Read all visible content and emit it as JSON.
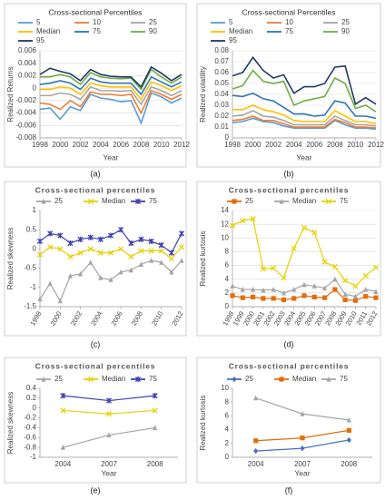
{
  "chart_data": [
    {
      "type": "line",
      "title": "Cross-sectional Percentiles",
      "panel_label": "(a)",
      "xlabel": "Year",
      "ylabel": "Realized Returns",
      "x": [
        1998,
        1999,
        2000,
        2001,
        2002,
        2003,
        2004,
        2005,
        2006,
        2007,
        2008,
        2009,
        2010,
        2011,
        2012
      ],
      "xlim": [
        1998,
        2012
      ],
      "xticks": [
        1998,
        2000,
        2002,
        2004,
        2006,
        2008,
        2010,
        2012
      ],
      "ylim": [
        -0.008,
        0.006
      ],
      "yticks": [
        -0.008,
        -0.006,
        -0.004,
        -0.002,
        0,
        0.002,
        0.004,
        0.006
      ],
      "grid": true,
      "legend": "top",
      "series": [
        {
          "name": "5",
          "color": "#5b9bd5",
          "marker": "none",
          "values": [
            -0.0034,
            -0.0032,
            -0.005,
            -0.003,
            -0.0036,
            -0.001,
            -0.0016,
            -0.0018,
            -0.0022,
            -0.002,
            -0.0056,
            -0.0008,
            -0.0014,
            -0.0024,
            -0.0016
          ]
        },
        {
          "name": "10",
          "color": "#ed7d31",
          "marker": "none",
          "values": [
            -0.0024,
            -0.0026,
            -0.0034,
            -0.002,
            -0.003,
            -0.0006,
            -0.001,
            -0.001,
            -0.0012,
            -0.001,
            -0.004,
            -0.0004,
            -0.001,
            -0.0018,
            -0.001
          ]
        },
        {
          "name": "25",
          "color": "#a5a5a5",
          "marker": "none",
          "values": [
            -0.0012,
            -0.0012,
            -0.0008,
            -0.001,
            -0.0018,
            0.0002,
            -0.0004,
            -0.0004,
            -0.0005,
            -0.0004,
            -0.0026,
            0.0002,
            -0.0004,
            -0.0012,
            -0.0004
          ]
        },
        {
          "name": "Median",
          "color": "#ffc000",
          "marker": "none",
          "values": [
            -0.0002,
            -0.0002,
            0.0002,
            0,
            -0.001,
            0.0008,
            0.0004,
            0.0002,
            0.0002,
            0.0002,
            -0.0018,
            0.001,
            0.0004,
            -0.0004,
            0.0004
          ]
        },
        {
          "name": "75",
          "color": "#2e75b6",
          "marker": "none",
          "values": [
            0.0006,
            0.0008,
            0.0012,
            0.0008,
            -0.0002,
            0.0016,
            0.001,
            0.0008,
            0.0008,
            0.0008,
            -0.001,
            0.0018,
            0.001,
            0.0002,
            0.001
          ]
        },
        {
          "name": "90",
          "color": "#70ad47",
          "marker": "none",
          "values": [
            0.0018,
            0.0018,
            0.0022,
            0.0018,
            0.0006,
            0.0025,
            0.0018,
            0.0016,
            0.0015,
            0.0016,
            -0.0002,
            0.003,
            0.0018,
            0.0008,
            0.0018
          ]
        },
        {
          "name": "95",
          "color": "#1f3864",
          "marker": "none",
          "values": [
            0.0022,
            0.0032,
            0.0027,
            0.0023,
            0.0012,
            0.003,
            0.0022,
            0.0019,
            0.0018,
            0.0018,
            0.0002,
            0.0034,
            0.0024,
            0.0012,
            0.0022
          ]
        }
      ]
    },
    {
      "type": "line",
      "title": "Cross-sectional Percentiles",
      "panel_label": "(b)",
      "xlabel": "Year",
      "ylabel": "Realized volatility",
      "x": [
        1998,
        1999,
        2000,
        2001,
        2002,
        2003,
        2004,
        2005,
        2006,
        2007,
        2008,
        2009,
        2010,
        2011,
        2012
      ],
      "xlim": [
        1998,
        2012
      ],
      "xticks": [
        1998,
        2000,
        2002,
        2004,
        2006,
        2008,
        2010,
        2012
      ],
      "ylim": [
        0,
        0.08
      ],
      "yticks": [
        0,
        0.01,
        0.02,
        0.03,
        0.04,
        0.05,
        0.06,
        0.07,
        0.08
      ],
      "grid": true,
      "legend": "top",
      "series": [
        {
          "name": "5",
          "color": "#5b9bd5",
          "marker": "none",
          "values": [
            0.014,
            0.015,
            0.018,
            0.015,
            0.014,
            0.011,
            0.009,
            0.009,
            0.009,
            0.009,
            0.016,
            0.012,
            0.009,
            0.009,
            0.008
          ]
        },
        {
          "name": "10",
          "color": "#ed7d31",
          "marker": "none",
          "values": [
            0.016,
            0.017,
            0.02,
            0.016,
            0.016,
            0.013,
            0.01,
            0.01,
            0.01,
            0.01,
            0.017,
            0.014,
            0.01,
            0.01,
            0.009
          ]
        },
        {
          "name": "25",
          "color": "#a5a5a5",
          "marker": "none",
          "values": [
            0.02,
            0.021,
            0.025,
            0.02,
            0.019,
            0.016,
            0.012,
            0.012,
            0.012,
            0.012,
            0.02,
            0.016,
            0.012,
            0.012,
            0.011
          ]
        },
        {
          "name": "Median",
          "color": "#ffc000",
          "marker": "none",
          "values": [
            0.026,
            0.026,
            0.03,
            0.026,
            0.024,
            0.021,
            0.016,
            0.015,
            0.015,
            0.015,
            0.025,
            0.02,
            0.015,
            0.015,
            0.013
          ]
        },
        {
          "name": "75",
          "color": "#2e75b6",
          "marker": "none",
          "values": [
            0.039,
            0.038,
            0.041,
            0.036,
            0.034,
            0.028,
            0.022,
            0.022,
            0.02,
            0.021,
            0.034,
            0.032,
            0.02,
            0.02,
            0.018
          ]
        },
        {
          "name": "90",
          "color": "#70ad47",
          "marker": "none",
          "values": [
            0.045,
            0.048,
            0.062,
            0.052,
            0.05,
            0.052,
            0.03,
            0.034,
            0.036,
            0.038,
            0.055,
            0.05,
            0.027,
            0.03,
            0.024
          ]
        },
        {
          "name": "95",
          "color": "#1f3864",
          "marker": "none",
          "values": [
            0.057,
            0.06,
            0.074,
            0.062,
            0.055,
            0.058,
            0.041,
            0.047,
            0.047,
            0.05,
            0.065,
            0.066,
            0.031,
            0.037,
            0.031
          ]
        }
      ]
    },
    {
      "type": "line",
      "title": "Cross-sectional percentiles",
      "panel_label": "(c)",
      "ylabel": "Realized skewness",
      "x": [
        1998,
        1999,
        2000,
        2001,
        2002,
        2003,
        2004,
        2005,
        2006,
        2007,
        2008,
        2009,
        2010,
        2011,
        2012
      ],
      "xlim": [
        1998,
        2012
      ],
      "xticks": [
        1998,
        2000,
        2002,
        2004,
        2006,
        2008,
        2010,
        2012
      ],
      "ylim": [
        -1.5,
        1
      ],
      "yticks": [
        -1.5,
        -1,
        -0.5,
        0,
        0.5,
        1
      ],
      "grid": false,
      "legend": "top",
      "series": [
        {
          "name": "25",
          "color": "#a5a5a5",
          "marker": "triangle",
          "values": [
            -1.3,
            -0.9,
            -1.35,
            -0.7,
            -0.65,
            -0.35,
            -0.75,
            -0.8,
            -0.6,
            -0.55,
            -0.4,
            -0.3,
            -0.35,
            -0.6,
            -0.3
          ]
        },
        {
          "name": "Median",
          "color": "#e6d200",
          "marker": "x",
          "values": [
            -0.15,
            0.05,
            0,
            -0.2,
            -0.1,
            0,
            -0.1,
            -0.1,
            0,
            -0.2,
            -0.05,
            -0.05,
            -0.05,
            -0.25,
            0.05
          ]
        },
        {
          "name": "75",
          "color": "#4040b0",
          "marker": "asterisk",
          "values": [
            0.2,
            0.4,
            0.35,
            0.15,
            0.25,
            0.3,
            0.25,
            0.35,
            0.5,
            0.15,
            0.25,
            0.2,
            0.1,
            -0.1,
            0.4
          ]
        }
      ]
    },
    {
      "type": "line",
      "title": "Cross-sectional percentiles",
      "panel_label": "(d)",
      "ylabel": "Realized kurtosis",
      "x": [
        1998,
        1999,
        2000,
        2001,
        2002,
        2003,
        2004,
        2005,
        2006,
        2007,
        2008,
        2009,
        2010,
        2011,
        2012
      ],
      "xlim": [
        1998,
        2012
      ],
      "xticks": [
        1998,
        1999,
        2000,
        2001,
        2002,
        2003,
        2004,
        2005,
        2006,
        2007,
        2008,
        2009,
        2010,
        2011,
        2012
      ],
      "ylim": [
        0,
        14
      ],
      "yticks": [
        0,
        2,
        4,
        6,
        8,
        10,
        12,
        14
      ],
      "grid": true,
      "legend": "top",
      "series": [
        {
          "name": "25",
          "color": "#e46c0a",
          "marker": "square",
          "values": [
            1.6,
            1.3,
            1.4,
            1.2,
            1.2,
            1,
            1.2,
            1.6,
            1.4,
            1.3,
            2.5,
            1,
            0.9,
            1.5,
            1.3
          ]
        },
        {
          "name": "Median",
          "color": "#a5a5a5",
          "marker": "triangle",
          "values": [
            3,
            2.5,
            2.5,
            2.4,
            2.5,
            2,
            2.5,
            3.2,
            3,
            2.7,
            4,
            1.8,
            1.5,
            2.5,
            2.2
          ]
        },
        {
          "name": "75",
          "color": "#e6d200",
          "marker": "x",
          "values": [
            11.8,
            12.5,
            12.8,
            5.5,
            5.6,
            4.2,
            8.5,
            11.5,
            10.8,
            6.5,
            5.8,
            3.8,
            3,
            4.5,
            5.7
          ]
        }
      ]
    },
    {
      "type": "line",
      "title": "Cross-sectional percentiles",
      "panel_label": "(e)",
      "xlabel": "Year",
      "ylabel": "Realized skewness",
      "categories": [
        "2004",
        "2007",
        "2008"
      ],
      "ylim": [
        -1,
        0.4
      ],
      "yticks": [
        -1,
        -0.8,
        -0.6,
        -0.4,
        -0.2,
        0,
        0.2,
        0.4
      ],
      "grid": false,
      "legend": "top",
      "series": [
        {
          "name": "25",
          "color": "#a5a5a5",
          "marker": "triangle",
          "values": [
            -0.8,
            -0.55,
            -0.4
          ]
        },
        {
          "name": "Median",
          "color": "#e6d200",
          "marker": "x",
          "values": [
            -0.05,
            -0.12,
            -0.05
          ]
        },
        {
          "name": "75",
          "color": "#4040b0",
          "marker": "asterisk",
          "values": [
            0.25,
            0.15,
            0.25
          ]
        }
      ]
    },
    {
      "type": "line",
      "title": "Cross-sectional percentiles",
      "panel_label": "(f)",
      "xlabel": "Year",
      "ylabel": "Realized kurtosis",
      "categories": [
        "2004",
        "2007",
        "2008"
      ],
      "ylim": [
        0,
        10
      ],
      "yticks": [
        0,
        2,
        4,
        6,
        8,
        10
      ],
      "grid": false,
      "legend": "top",
      "series": [
        {
          "name": "25",
          "color": "#4472c4",
          "marker": "diamond",
          "values": [
            0.9,
            1.3,
            2.5
          ]
        },
        {
          "name": "Median",
          "color": "#e46c0a",
          "marker": "square",
          "values": [
            2.4,
            2.8,
            3.9
          ]
        },
        {
          "name": "75",
          "color": "#a5a5a5",
          "marker": "triangle",
          "values": [
            8.6,
            6.3,
            5.4
          ]
        }
      ]
    }
  ]
}
